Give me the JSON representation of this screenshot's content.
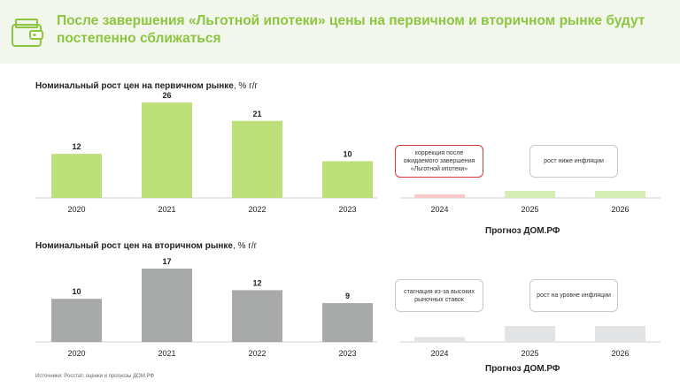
{
  "header": {
    "title": "После завершения «Льготной ипотеки» цены на первичном и вторичном рынке будут постепенно сближаться",
    "icon": "wallet-icon",
    "accent_color": "#8cc63f"
  },
  "primary": {
    "title_bold": "Номинальный рост цен на первичном рынке",
    "title_unit": ", % г/г"
  },
  "secondary": {
    "title_bold": "Номинальный рост цен на вторичном рынке",
    "title_unit": ", % г/г"
  },
  "forecast": {
    "label": "Прогноз ДОМ.РФ",
    "primary_callouts": [
      "коррекция после ожидаемого завершения «Льготной ипотеки»",
      "рост ниже инфляции"
    ],
    "secondary_callouts": [
      "стагнация из-за высоких рыночных ставок",
      "рост на уровне инфляции"
    ]
  },
  "source": "Источники: Росстат, оценки и прогнозы ДОМ.РФ",
  "chart_data": [
    {
      "type": "bar",
      "title": "Номинальный рост цен на первичном рынке, % г/г",
      "categories": [
        "2020",
        "2021",
        "2022",
        "2023"
      ],
      "values": [
        12,
        26,
        21,
        10
      ],
      "color": "#bde07a"
    },
    {
      "type": "bar",
      "title": "Номинальный рост цен на вторичном рынке, % г/г",
      "categories": [
        "2020",
        "2021",
        "2022",
        "2023"
      ],
      "values": [
        10,
        17,
        12,
        9
      ],
      "color": "#a8aaa9"
    },
    {
      "type": "bar",
      "title": "Прогноз ДОМ.РФ",
      "categories": [
        "2024",
        "2025",
        "2026"
      ],
      "values": [
        0.5,
        1,
        1
      ],
      "colors": [
        "#f8c9c9",
        "#d6ecb7",
        "#d6ecb7"
      ]
    },
    {
      "type": "bar",
      "title": "Прогноз ДОМ.РФ",
      "categories": [
        "2024",
        "2025",
        "2026"
      ],
      "values": [
        0.3,
        1,
        1
      ],
      "colors": [
        "#e2e3e4",
        "#e2e3e4",
        "#e2e3e4"
      ]
    }
  ]
}
